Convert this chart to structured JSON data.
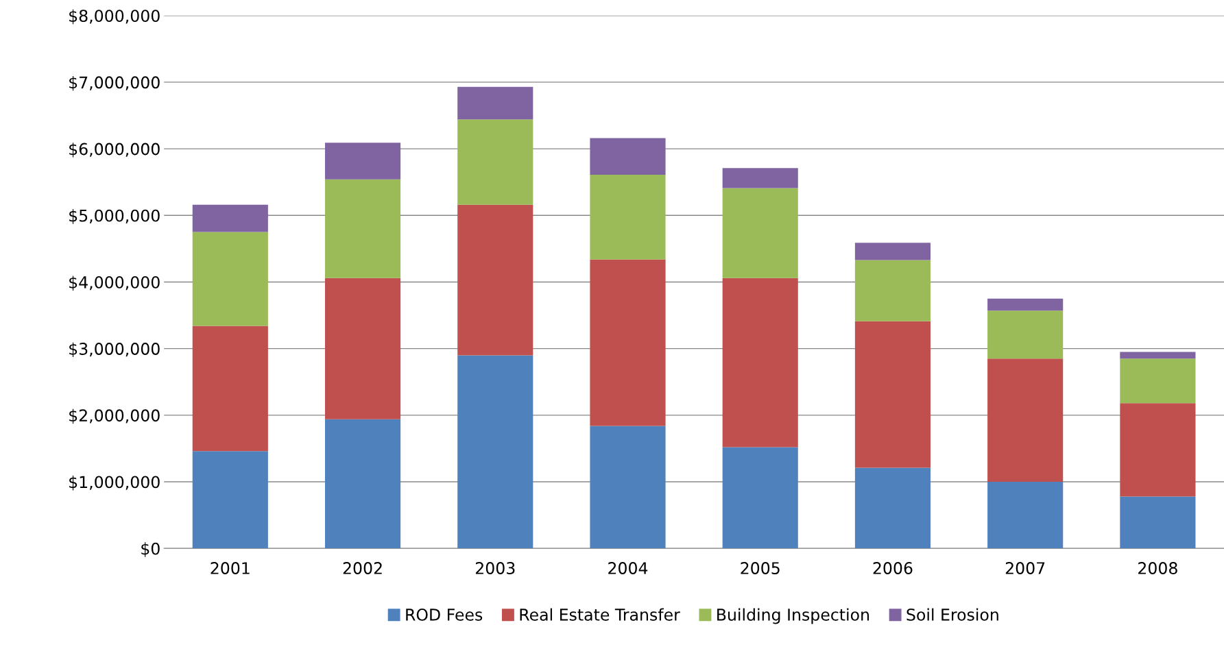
{
  "chart_data": {
    "type": "bar",
    "stacked": true,
    "categories": [
      "2001",
      "2002",
      "2003",
      "2004",
      "2005",
      "2006",
      "2007",
      "2008"
    ],
    "series": [
      {
        "name": "ROD Fees",
        "color": "#4f81bd",
        "values": [
          1460000,
          1940000,
          2900000,
          1840000,
          1520000,
          1210000,
          1000000,
          780000
        ]
      },
      {
        "name": "Real Estate Transfer",
        "color": "#c0504d",
        "values": [
          1880000,
          2120000,
          2260000,
          2500000,
          2540000,
          2200000,
          1850000,
          1400000
        ]
      },
      {
        "name": "Building Inspection",
        "color": "#9bbb59",
        "values": [
          1410000,
          1480000,
          1280000,
          1270000,
          1350000,
          920000,
          720000,
          670000
        ]
      },
      {
        "name": "Soil Erosion",
        "color": "#8064a2",
        "values": [
          410000,
          550000,
          490000,
          550000,
          300000,
          260000,
          180000,
          100000
        ]
      }
    ],
    "ylim": [
      0,
      8000000
    ],
    "yticks": [
      {
        "value": 0,
        "label": "$0"
      },
      {
        "value": 1000000,
        "label": "$1,000,000"
      },
      {
        "value": 2000000,
        "label": "$2,000,000"
      },
      {
        "value": 3000000,
        "label": "$3,000,000"
      },
      {
        "value": 4000000,
        "label": "$4,000,000"
      },
      {
        "value": 5000000,
        "label": "$5,000,000"
      },
      {
        "value": 6000000,
        "label": "$6,000,000"
      },
      {
        "value": 7000000,
        "label": "$7,000,000"
      },
      {
        "value": 8000000,
        "label": "$8,000,000"
      }
    ],
    "grid": "y",
    "legend": "bottom"
  }
}
